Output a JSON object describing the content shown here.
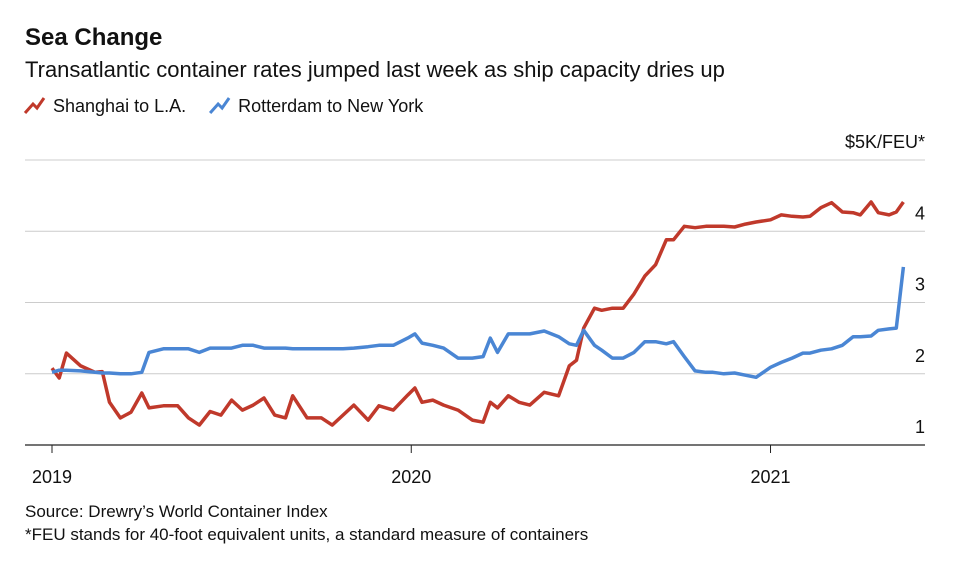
{
  "chart_data": {
    "type": "line",
    "title": "Sea Change",
    "subtitle": "Transatlantic container rates jumped last week as ship capacity dries up",
    "source": "Source: Drewry’s World Container Index",
    "footnote": "*FEU stands for 40-foot equivalent units, a standard measure of containers",
    "x": [
      2019.0,
      2019.02,
      2019.04,
      2019.08,
      2019.12,
      2019.14,
      2019.16,
      2019.19,
      2019.22,
      2019.25,
      2019.27,
      2019.31,
      2019.35,
      2019.38,
      2019.41,
      2019.44,
      2019.47,
      2019.5,
      2019.53,
      2019.56,
      2019.59,
      2019.62,
      2019.65,
      2019.67,
      2019.71,
      2019.75,
      2019.78,
      2019.81,
      2019.84,
      2019.88,
      2019.91,
      2019.95,
      2019.99,
      2020.01,
      2020.03,
      2020.06,
      2020.09,
      2020.13,
      2020.17,
      2020.2,
      2020.22,
      2020.24,
      2020.27,
      2020.3,
      2020.33,
      2020.37,
      2020.41,
      2020.44,
      2020.46,
      2020.48,
      2020.51,
      2020.53,
      2020.56,
      2020.59,
      2020.62,
      2020.65,
      2020.68,
      2020.71,
      2020.73,
      2020.76,
      2020.79,
      2020.82,
      2020.84,
      2020.87,
      2020.9,
      2020.93,
      2020.96,
      2021.0,
      2021.03,
      2021.06,
      2021.09,
      2021.11,
      2021.14,
      2021.17,
      2021.2,
      2021.23,
      2021.25,
      2021.28,
      2021.3,
      2021.33,
      2021.35,
      2021.37
    ],
    "series": [
      {
        "name": "Shanghai to L.A.",
        "color": "#c0392b",
        "values": [
          2.08,
          1.94,
          2.29,
          2.11,
          2.02,
          2.03,
          1.6,
          1.38,
          1.46,
          1.73,
          1.52,
          1.55,
          1.55,
          1.38,
          1.28,
          1.47,
          1.42,
          1.63,
          1.49,
          1.56,
          1.66,
          1.42,
          1.38,
          1.69,
          1.38,
          1.38,
          1.28,
          1.42,
          1.56,
          1.35,
          1.55,
          1.49,
          1.7,
          1.8,
          1.6,
          1.63,
          1.56,
          1.49,
          1.35,
          1.32,
          1.6,
          1.52,
          1.69,
          1.6,
          1.56,
          1.74,
          1.69,
          2.11,
          2.19,
          2.64,
          2.92,
          2.89,
          2.92,
          2.92,
          3.12,
          3.37,
          3.53,
          3.88,
          3.88,
          4.07,
          4.05,
          4.07,
          4.07,
          4.07,
          4.06,
          4.1,
          4.13,
          4.16,
          4.23,
          4.21,
          4.2,
          4.21,
          4.33,
          4.4,
          4.27,
          4.26,
          4.23,
          4.41,
          4.26,
          4.23,
          4.27,
          4.41
        ]
      },
      {
        "name": "Rotterdam to New York",
        "color": "#4a86d4",
        "values": [
          2.02,
          2.05,
          2.05,
          2.04,
          2.02,
          2.01,
          2.01,
          2.0,
          2.0,
          2.02,
          2.3,
          2.35,
          2.35,
          2.35,
          2.3,
          2.36,
          2.36,
          2.36,
          2.4,
          2.4,
          2.36,
          2.36,
          2.36,
          2.35,
          2.35,
          2.35,
          2.35,
          2.35,
          2.36,
          2.38,
          2.4,
          2.4,
          2.5,
          2.56,
          2.43,
          2.4,
          2.36,
          2.22,
          2.22,
          2.24,
          2.5,
          2.3,
          2.56,
          2.56,
          2.56,
          2.6,
          2.52,
          2.42,
          2.4,
          2.61,
          2.4,
          2.33,
          2.22,
          2.22,
          2.3,
          2.45,
          2.45,
          2.42,
          2.45,
          2.24,
          2.04,
          2.02,
          2.02,
          2.0,
          2.01,
          1.98,
          1.95,
          2.09,
          2.16,
          2.22,
          2.29,
          2.29,
          2.33,
          2.35,
          2.4,
          2.52,
          2.52,
          2.53,
          2.61,
          2.63,
          2.64,
          3.5
        ]
      }
    ],
    "xlim": [
      2019,
      2021.43
    ],
    "xticks": [
      2019,
      2020,
      2021
    ],
    "ylim": [
      1,
      5
    ],
    "yticks": [
      1,
      2,
      3,
      4,
      {
        "value": 5,
        "label": "$5K/FEU*"
      }
    ],
    "grid": true,
    "legend": "top-left"
  }
}
